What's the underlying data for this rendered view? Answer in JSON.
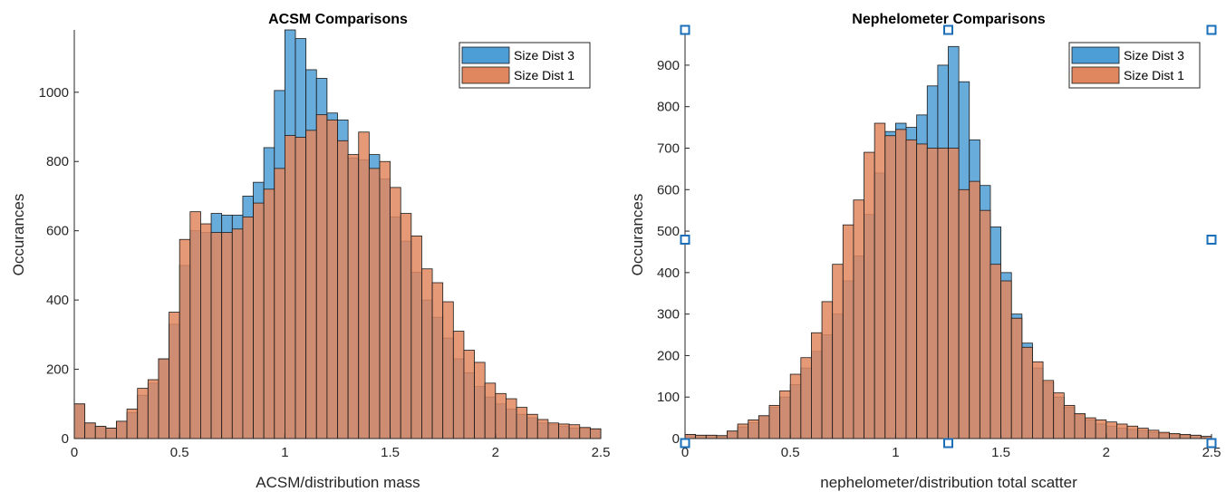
{
  "colors": {
    "series1": "#4d9ed6",
    "series2": "#e0875f",
    "overlap": "#a86a5c",
    "axis": "#262626",
    "handle": "#1a6fb8"
  },
  "chart_data": [
    {
      "type": "bar",
      "title": "ACSM Comparisons",
      "xlabel": "ACSM/distribution mass",
      "ylabel": "Occurances",
      "xlim": [
        0,
        2.5
      ],
      "ylim": [
        0,
        1180
      ],
      "xticks": [
        "0",
        "0.5",
        "1",
        "1.5",
        "2",
        "2.5"
      ],
      "yticks": [
        "0",
        "200",
        "400",
        "600",
        "800",
        "1000"
      ],
      "bin_width": 0.05,
      "bin_start": 0,
      "legend": [
        "Size Dist 3",
        "Size Dist 1"
      ],
      "legend_position": "top-right",
      "series": [
        {
          "name": "Size Dist 3",
          "values": [
            100,
            45,
            35,
            30,
            50,
            75,
            125,
            160,
            230,
            330,
            500,
            600,
            595,
            650,
            645,
            645,
            700,
            740,
            840,
            1005,
            1180,
            1155,
            1065,
            1040,
            940,
            920,
            810,
            805,
            820,
            750,
            640,
            570,
            480,
            400,
            350,
            290,
            230,
            190,
            150,
            120,
            100,
            85,
            70,
            60,
            45,
            40,
            35,
            30,
            30,
            28
          ]
        },
        {
          "name": "Size Dist 1",
          "values": [
            100,
            45,
            35,
            30,
            50,
            85,
            145,
            170,
            230,
            365,
            575,
            655,
            620,
            595,
            595,
            605,
            640,
            680,
            720,
            780,
            875,
            870,
            890,
            935,
            920,
            860,
            820,
            885,
            780,
            800,
            725,
            650,
            585,
            490,
            450,
            395,
            310,
            255,
            220,
            160,
            130,
            115,
            90,
            70,
            55,
            45,
            42,
            40,
            32,
            28
          ]
        }
      ]
    },
    {
      "type": "bar",
      "title": "Nephelometer Comparisons",
      "xlabel": "nephelometer/distribution total scatter",
      "ylabel": "Occurances",
      "xlim": [
        0,
        2.5
      ],
      "ylim": [
        0,
        985
      ],
      "xticks": [
        "0",
        "0.5",
        "1",
        "1.5",
        "2",
        "2.5"
      ],
      "yticks": [
        "0",
        "100",
        "200",
        "300",
        "400",
        "500",
        "600",
        "700",
        "800",
        "900"
      ],
      "bin_width": 0.05,
      "bin_start": 0,
      "legend": [
        "Size Dist 3",
        "Size Dist 1"
      ],
      "legend_position": "top-right",
      "series": [
        {
          "name": "Size Dist 3",
          "values": [
            10,
            8,
            8,
            7,
            18,
            28,
            38,
            55,
            75,
            100,
            130,
            170,
            210,
            250,
            300,
            380,
            440,
            540,
            640,
            740,
            760,
            750,
            780,
            850,
            900,
            945,
            860,
            720,
            610,
            510,
            400,
            300,
            230,
            170,
            135,
            100,
            75,
            58,
            45,
            35,
            30,
            25,
            22,
            20,
            15,
            12,
            10,
            8,
            8,
            5
          ]
        },
        {
          "name": "Size Dist 1",
          "values": [
            10,
            8,
            8,
            7,
            18,
            35,
            45,
            55,
            80,
            115,
            155,
            195,
            255,
            330,
            420,
            515,
            575,
            690,
            760,
            730,
            745,
            720,
            710,
            700,
            700,
            700,
            600,
            620,
            550,
            420,
            380,
            290,
            220,
            185,
            140,
            110,
            80,
            60,
            50,
            45,
            40,
            35,
            30,
            25,
            20,
            15,
            12,
            10,
            8,
            5
          ]
        }
      ]
    }
  ]
}
